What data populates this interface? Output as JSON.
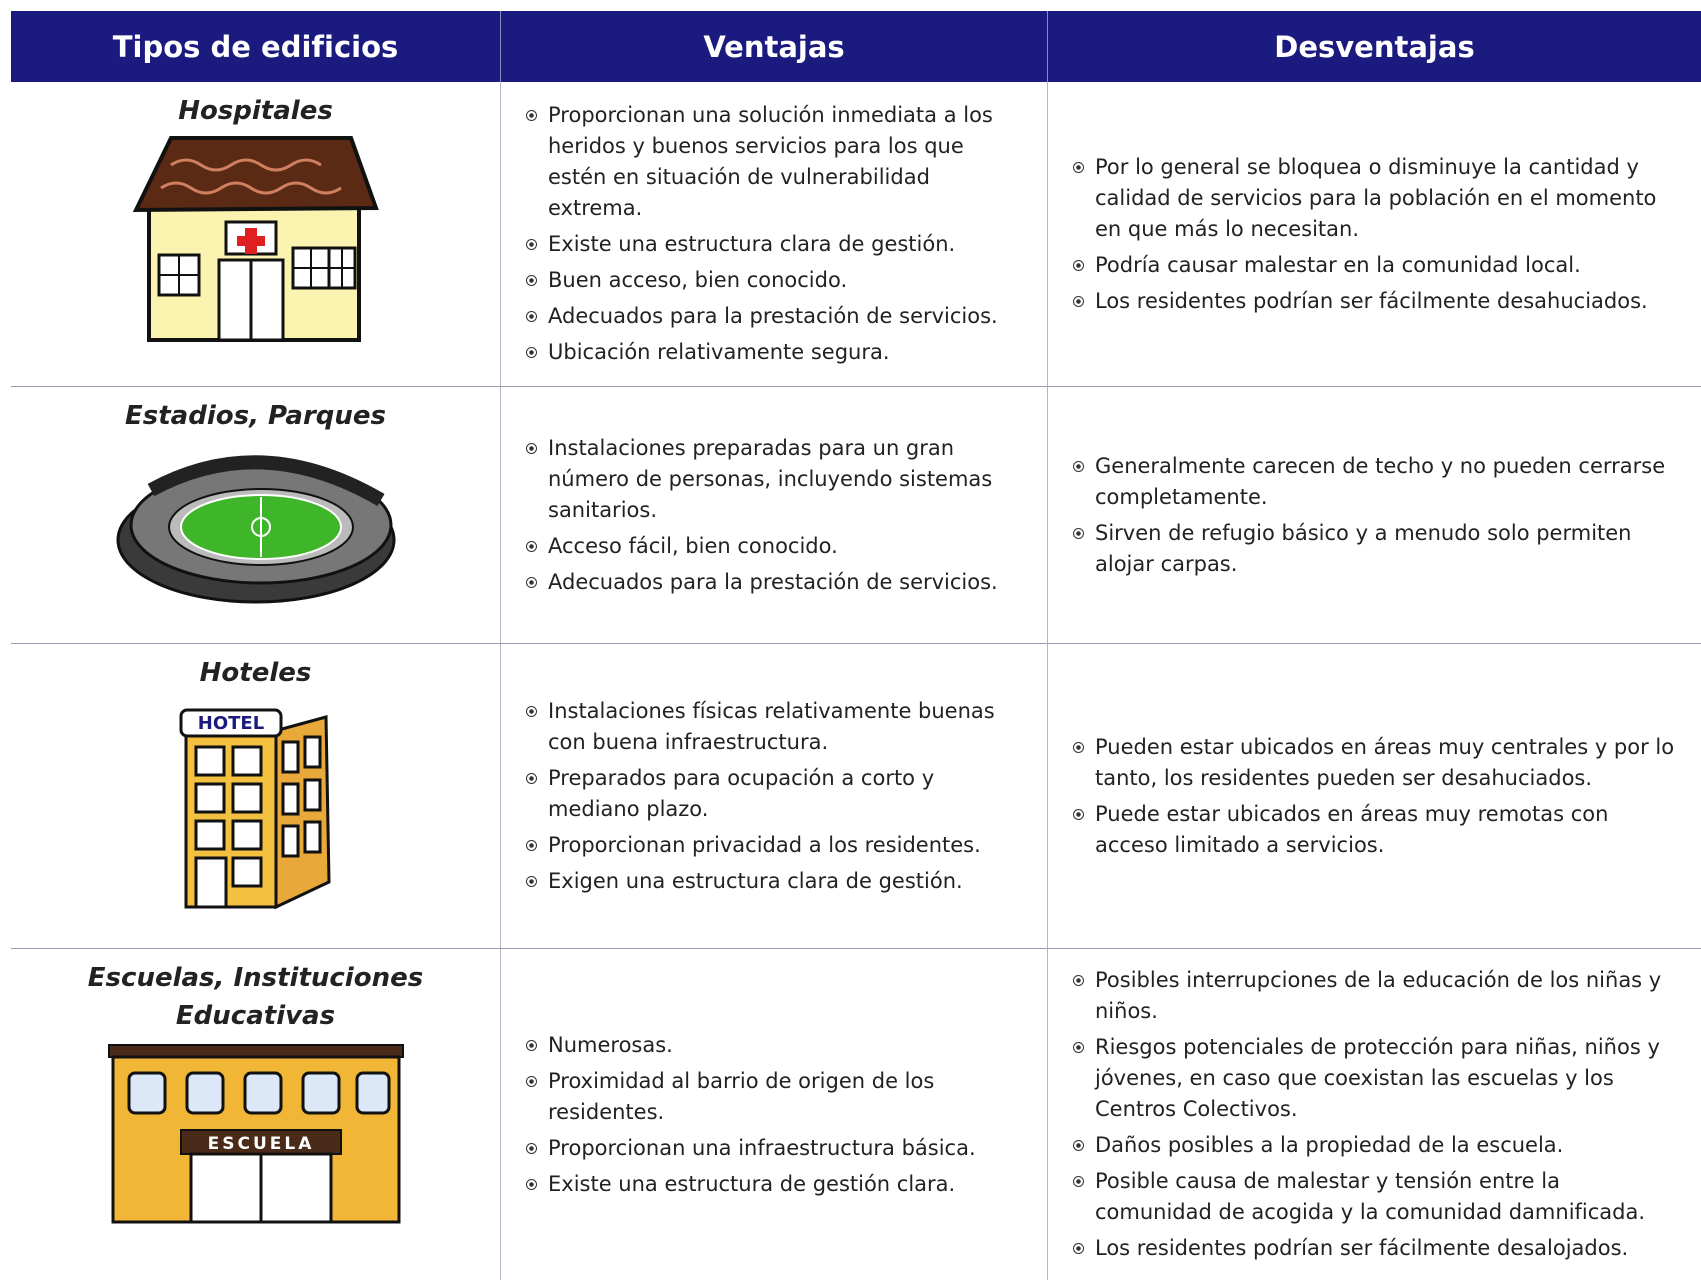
{
  "table": {
    "headers": [
      "Tipos de edificios",
      "Ventajas",
      "Desventajas"
    ],
    "rows": [
      {
        "name": "Hospitales",
        "ventajas": [
          "Proporcionan una solución inmediata a los heridos y buenos servicios para los que estén en situación de vulnerabilidad extrema.",
          "Existe una estructura clara de gestión.",
          "Buen acceso, bien conocido.",
          "Adecuados para la prestación de servicios.",
          "Ubicación relativamente segura."
        ],
        "desventajas": [
          "Por lo general se bloquea o disminuye la cantidad y calidad de servicios para la población en el momento en que más lo necesitan.",
          "Podría causar malestar en la comunidad local.",
          "Los residentes podrían ser fácilmente desahuciados."
        ]
      },
      {
        "name": "Estadios, Parques",
        "ventajas": [
          "Instalaciones preparadas para un gran número de personas, incluyendo sistemas sanitarios.",
          "Acceso fácil, bien conocido.",
          "Adecuados para la prestación de servicios."
        ],
        "desventajas": [
          "Generalmente carecen de techo y no pueden cerrarse completamente.",
          "Sirven de refugio básico y a menudo solo permiten alojar carpas."
        ]
      },
      {
        "name": "Hoteles",
        "sign": "HOTEL",
        "ventajas": [
          "Instalaciones físicas relativamente buenas con buena infraestructura.",
          "Preparados para ocupación a corto y mediano plazo.",
          "Proporcionan privacidad a los residentes.",
          "Exigen una estructura clara de gestión."
        ],
        "desventajas": [
          "Pueden estar ubicados en áreas muy centrales y por lo tanto, los residentes pueden ser desahuciados.",
          "Puede estar ubicados en áreas muy remotas con acceso limitado a servicios."
        ]
      },
      {
        "name": "Escuelas, Instituciones Educativas",
        "sign": "ESCUELA",
        "ventajas": [
          "Numerosas.",
          "Proximidad al barrio de origen de los residentes.",
          "Proporcionan una infraestructura básica.",
          "Existe una estructura de gestión clara."
        ],
        "desventajas": [
          "Posibles interrupciones de la educación de los niñas y niños.",
          "Riesgos potenciales de protección para niñas, niños y jóvenes, en caso que coexistan las escuelas y los Centros Colectivos.",
          "Daños posibles a la propiedad de la escuela.",
          "Posible causa de malestar y tensión entre la comunidad de acogida y la comunidad damnificada.",
          "Los residentes podrían ser fácilmente desalojados."
        ]
      }
    ]
  }
}
